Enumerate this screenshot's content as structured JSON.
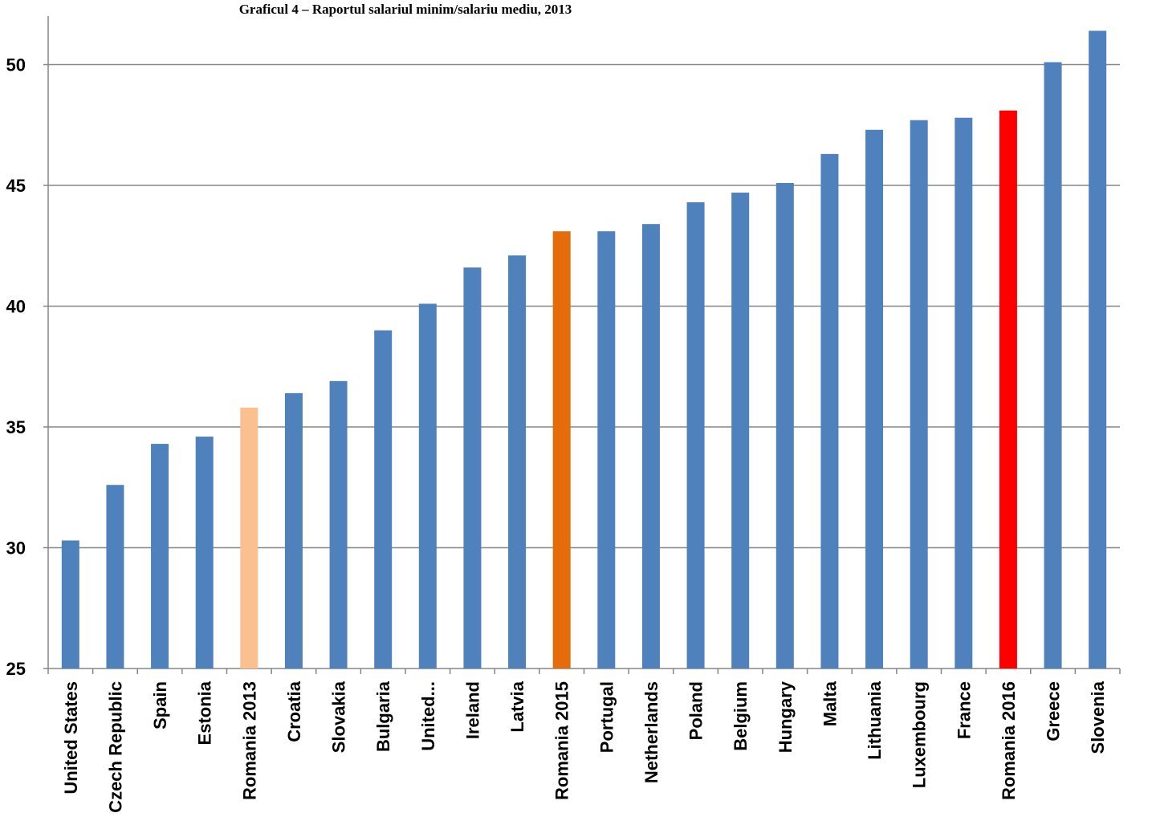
{
  "chart_data": {
    "type": "bar",
    "title": "Graficul 4 – Raportul salariul minim/salariu mediu, 2013",
    "xlabel": "",
    "ylabel": "",
    "ylim": [
      25,
      52
    ],
    "yticks": [
      "25",
      "30",
      "35",
      "40",
      "45",
      "50"
    ],
    "grid": true,
    "categories": [
      "United States",
      "Czech Republic",
      "Spain",
      "Estonia",
      "Romania 2013",
      "Croatia",
      "Slovakia",
      "Bulgaria",
      "United...",
      "Ireland",
      "Latvia",
      "Romania 2015",
      "Portugal",
      "Netherlands",
      "Poland",
      "Belgium",
      "Hungary",
      "Malta",
      "Lithuania",
      "Luxembourg",
      "France",
      "Romania 2016",
      "Greece",
      "Slovenia"
    ],
    "values": [
      30.3,
      32.6,
      34.3,
      34.6,
      35.8,
      36.4,
      36.9,
      39.0,
      40.1,
      41.6,
      42.1,
      43.1,
      43.1,
      43.4,
      44.3,
      44.7,
      45.1,
      46.3,
      47.3,
      47.7,
      47.8,
      48.1,
      50.1,
      51.4
    ],
    "bar_colors": [
      "#4f81bd",
      "#4f81bd",
      "#4f81bd",
      "#4f81bd",
      "#fac090",
      "#4f81bd",
      "#4f81bd",
      "#4f81bd",
      "#4f81bd",
      "#4f81bd",
      "#4f81bd",
      "#e46c0a",
      "#4f81bd",
      "#4f81bd",
      "#4f81bd",
      "#4f81bd",
      "#4f81bd",
      "#4f81bd",
      "#4f81bd",
      "#4f81bd",
      "#4f81bd",
      "#ff0000",
      "#4f81bd",
      "#4f81bd"
    ]
  }
}
